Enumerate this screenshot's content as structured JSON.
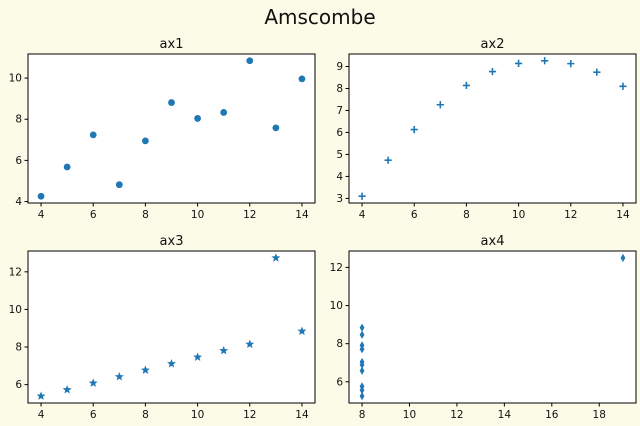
{
  "figure": {
    "title": "Amscombe",
    "background": "#fcfbe8",
    "axes_background": "#ffffff",
    "spine_color": "#000000",
    "marker_color": "#1f77b4"
  },
  "chart_data": [
    {
      "type": "scatter",
      "title": "ax1",
      "marker": "circle",
      "color": "#1f77b4",
      "x": [
        10,
        8,
        13,
        9,
        11,
        14,
        6,
        4,
        12,
        7,
        5
      ],
      "y": [
        8.04,
        6.95,
        7.58,
        8.81,
        8.33,
        9.96,
        7.24,
        4.26,
        10.84,
        4.82,
        5.68
      ],
      "xlim": [
        3.5,
        14.5
      ],
      "ylim": [
        3.931,
        11.169
      ],
      "xticks": [
        4,
        6,
        8,
        10,
        12,
        14
      ],
      "yticks": [
        4,
        6,
        8,
        10
      ],
      "grid": false,
      "xlabel": "",
      "ylabel": ""
    },
    {
      "type": "scatter",
      "title": "ax2",
      "marker": "plus",
      "color": "#1f77b4",
      "x": [
        10,
        8,
        13,
        9,
        11,
        14,
        6,
        4,
        12,
        7,
        5
      ],
      "y": [
        9.14,
        8.14,
        8.74,
        8.77,
        9.26,
        8.1,
        6.13,
        3.1,
        9.13,
        7.26,
        4.74
      ],
      "xlim": [
        3.5,
        14.5
      ],
      "ylim": [
        2.792,
        9.568
      ],
      "xticks": [
        4,
        6,
        8,
        10,
        12,
        14
      ],
      "yticks": [
        3,
        4,
        5,
        6,
        7,
        8,
        9
      ],
      "grid": false,
      "xlabel": "",
      "ylabel": ""
    },
    {
      "type": "scatter",
      "title": "ax3",
      "marker": "star",
      "color": "#1f77b4",
      "x": [
        10,
        8,
        13,
        9,
        11,
        14,
        6,
        4,
        12,
        7,
        5
      ],
      "y": [
        7.46,
        6.77,
        12.74,
        7.11,
        7.81,
        8.84,
        6.08,
        5.39,
        8.15,
        6.42,
        5.73
      ],
      "xlim": [
        3.5,
        14.5
      ],
      "ylim": [
        5.0225,
        13.1075
      ],
      "xticks": [
        4,
        6,
        8,
        10,
        12,
        14
      ],
      "yticks": [
        6,
        8,
        10,
        12
      ],
      "grid": false,
      "xlabel": "",
      "ylabel": ""
    },
    {
      "type": "scatter",
      "title": "ax4",
      "marker": "thin-diamond",
      "color": "#1f77b4",
      "x": [
        8,
        8,
        8,
        8,
        8,
        8,
        8,
        19,
        8,
        8,
        8
      ],
      "y": [
        6.58,
        5.76,
        7.71,
        8.84,
        8.47,
        7.04,
        5.25,
        12.5,
        5.56,
        7.91,
        6.89
      ],
      "xlim": [
        7.45,
        19.55
      ],
      "ylim": [
        4.8875,
        12.8625
      ],
      "xticks": [
        8,
        10,
        12,
        14,
        16,
        18
      ],
      "yticks": [
        6,
        8,
        10,
        12
      ],
      "grid": false,
      "xlabel": "",
      "ylabel": ""
    }
  ]
}
